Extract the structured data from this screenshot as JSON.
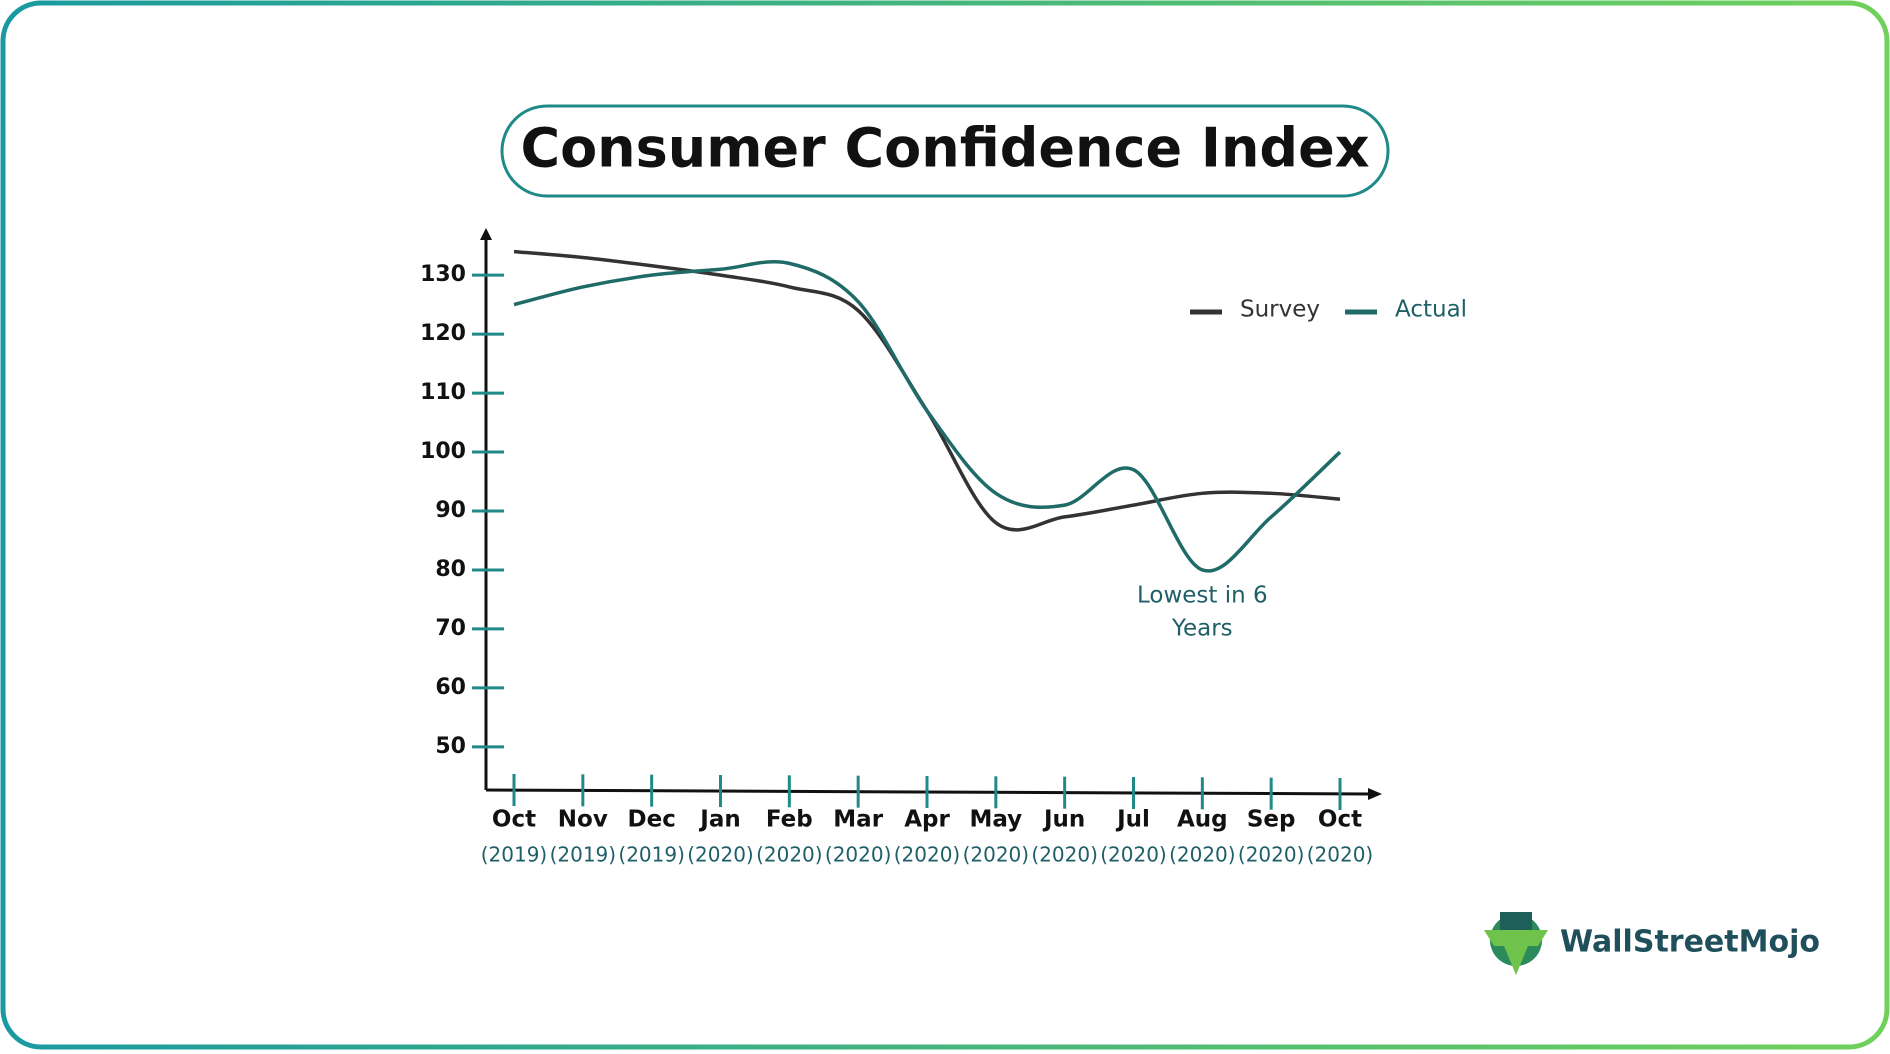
{
  "chart_data": {
    "type": "line",
    "title": "Consumer Confidence Index",
    "categories": [
      [
        "Oct",
        "(2019)"
      ],
      [
        "Nov",
        "(2019)"
      ],
      [
        "Dec",
        "(2019)"
      ],
      [
        "Jan",
        "(2020)"
      ],
      [
        "Feb",
        "(2020)"
      ],
      [
        "Mar",
        "(2020)"
      ],
      [
        "Apr",
        "(2020)"
      ],
      [
        "May",
        "(2020)"
      ],
      [
        "Jun",
        "(2020)"
      ],
      [
        "Jul",
        "(2020)"
      ],
      [
        "Aug",
        "(2020)"
      ],
      [
        "Sep",
        "(2020)"
      ],
      [
        "Oct",
        "(2020)"
      ]
    ],
    "series": [
      {
        "name": "Survey",
        "color": "#333333",
        "values": [
          134,
          133,
          131.6,
          130,
          128,
          124,
          107,
          88,
          89,
          91,
          93,
          93,
          92
        ]
      },
      {
        "name": "Actual",
        "color": "#1f6b68",
        "values": [
          125,
          128,
          130,
          131,
          132,
          125.5,
          107,
          93,
          91,
          97,
          80,
          89,
          100
        ]
      }
    ],
    "ylim": [
      42,
      138
    ],
    "yticks": [
      50,
      60,
      70,
      80,
      90,
      100,
      110,
      120,
      130
    ],
    "legend": "upper right",
    "annotation": {
      "lines": [
        "Lowest in 6",
        "Years"
      ],
      "category": 10
    },
    "watermark": "WallStreetMojo"
  }
}
